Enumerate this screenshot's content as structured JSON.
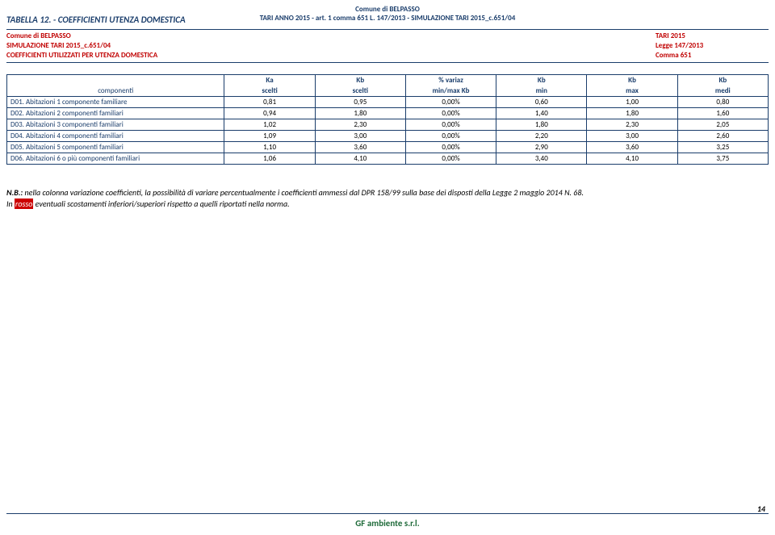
{
  "header": {
    "line1": "Comune di BELPASSO",
    "line2": "TARI ANNO 2015 - art. 1 comma 651 L. 147/2013 - SIMULAZIONE TARI 2015_c.651/04"
  },
  "table_title": "TABELLA 12. - COEFFICIENTI UTENZA DOMESTICA",
  "info": {
    "left_line1": "Comune di BELPASSO",
    "left_line2": "SIMULAZIONE TARI 2015_c.651/04",
    "left_line3": "COEFFICIENTI UTILIZZATI PER UTENZA DOMESTICA",
    "right_line1": "TARI 2015",
    "right_line2": "Legge 147/2013",
    "right_line3": "Comma 651"
  },
  "table": {
    "type": "table",
    "header_top": [
      "",
      "Ka",
      "Kb",
      "% variaz",
      "Kb",
      "Kb",
      "Kb"
    ],
    "header_bot": [
      "componenti",
      "scelti",
      "scelti",
      "min/max Kb",
      "min",
      "max",
      "medi"
    ],
    "rows": [
      [
        "D01. Abitazioni 1 componente familiare",
        "0,81",
        "0,95",
        "0,00%",
        "0,60",
        "1,00",
        "0,80"
      ],
      [
        "D02. Abitazioni 2 componenti familiari",
        "0,94",
        "1,80",
        "0,00%",
        "1,40",
        "1,80",
        "1,60"
      ],
      [
        "D03. Abitazioni 3 componenti familiari",
        "1,02",
        "2,30",
        "0,00%",
        "1,80",
        "2,30",
        "2,05"
      ],
      [
        "D04. Abitazioni 4 componenti familiari",
        "1,09",
        "3,00",
        "0,00%",
        "2,20",
        "3,00",
        "2,60"
      ],
      [
        "D05. Abitazioni 5 componenti familiari",
        "1,10",
        "3,60",
        "0,00%",
        "2,90",
        "3,60",
        "3,25"
      ],
      [
        "D06. Abitazioni 6 o più componenti familiari",
        "1,06",
        "4,10",
        "0,00%",
        "3,40",
        "4,10",
        "3,75"
      ]
    ],
    "border_color": "#1a3d6b",
    "text_color_header": "#1a3d6b",
    "font_size": 9
  },
  "footnote": {
    "prefix_bold": "N.B.: ",
    "text1": "nella colonna variazione coefficienti, la possibilità di variare percentualmente i coefficienti ammessi dal DPR 158/99 sulla base dei disposti della Legge 2 maggio 2014 N. 68.",
    "line2_prefix": "In ",
    "rosso_label": "rosso",
    "line2_suffix": " eventuali scostamenti inferiori/superiori rispetto a quelli riportati nella norma."
  },
  "footer": {
    "company": "GF ambiente s.r.l.",
    "page_number": "14",
    "line_color": "#1a3d6b",
    "company_color": "#1f6b3a"
  },
  "colors": {
    "heading_blue": "#1a3d6b",
    "info_red": "#c00000",
    "rosso_bg": "#cc0000",
    "background": "#ffffff"
  }
}
